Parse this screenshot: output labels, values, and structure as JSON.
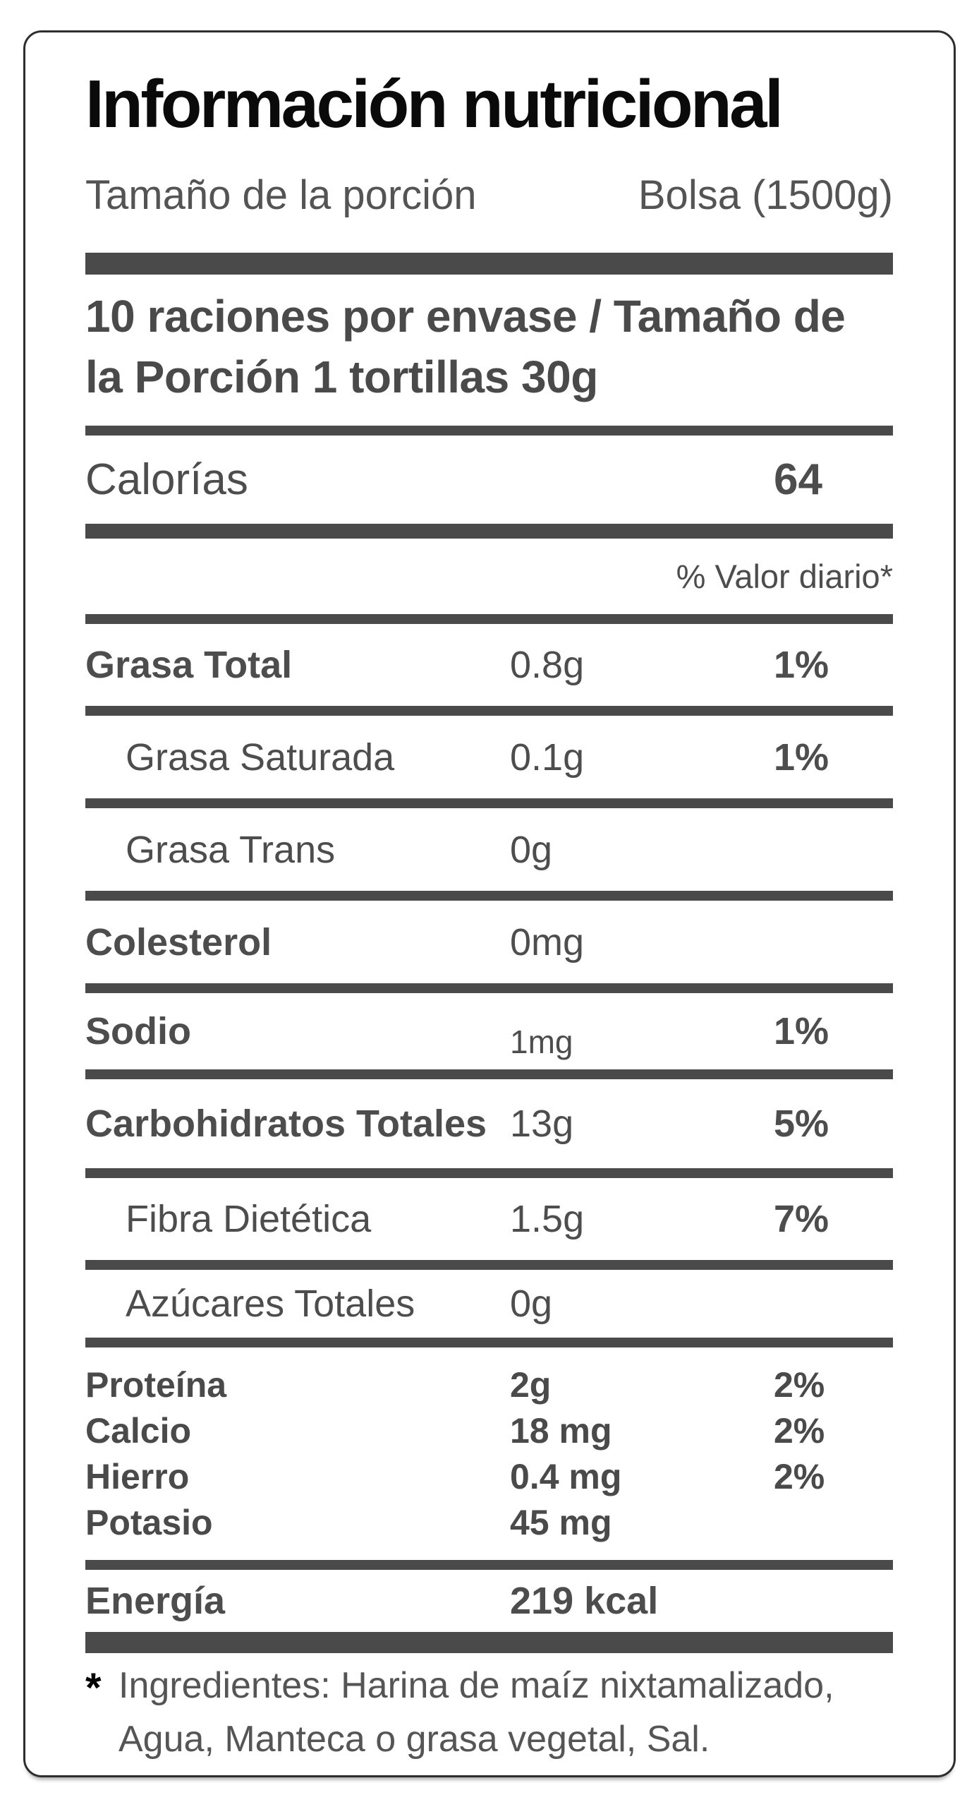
{
  "colors": {
    "bar": "#4a4a4a",
    "body_text": "#4d4d4d",
    "muted_text": "#555555",
    "title_text": "#0a0a0a"
  },
  "label": {
    "title": "Información nutricional",
    "serving": {
      "label": "Tamaño de la porción",
      "value": "Bolsa (1500g)"
    },
    "servings_per_pack": "10 raciones por envase / Tamaño de la Porción 1 tortillas 30g",
    "calories": {
      "label": "Calorías",
      "value": "64"
    },
    "dv_header": "% Valor diario*",
    "rows": [
      {
        "label": "Grasa Total",
        "value": "0.8g",
        "pct": "1%"
      },
      {
        "label": "Grasa Saturada",
        "value": "0.1g",
        "pct": "1%"
      },
      {
        "label": "Grasa Trans",
        "value": "0g",
        "pct": ""
      },
      {
        "label": "Colesterol",
        "value": "0mg",
        "pct": ""
      },
      {
        "label": "Sodio",
        "value": "1mg",
        "pct": "1%"
      },
      {
        "label": "Carbohidratos Totales",
        "value": "13g",
        "pct": "5%"
      },
      {
        "label": "Fibra Dietética",
        "value": "1.5g",
        "pct": "7%"
      },
      {
        "label": "Azúcares Totales",
        "value": "0g",
        "pct": ""
      }
    ],
    "minerals": [
      {
        "label": "Proteína",
        "value": "2g",
        "pct": "2%"
      },
      {
        "label": "Calcio",
        "value": "18 mg",
        "pct": "2%"
      },
      {
        "label": "Hierro",
        "value": "0.4 mg",
        "pct": "2%"
      },
      {
        "label": "Potasio",
        "value": "45 mg",
        "pct": ""
      }
    ],
    "energy": {
      "label": "Energía",
      "value": "219 kcal"
    },
    "footnote": {
      "marker": "*",
      "text": "Ingredientes: Harina de maíz nixtamalizado, Agua, Manteca o grasa vegetal, Sal."
    }
  }
}
